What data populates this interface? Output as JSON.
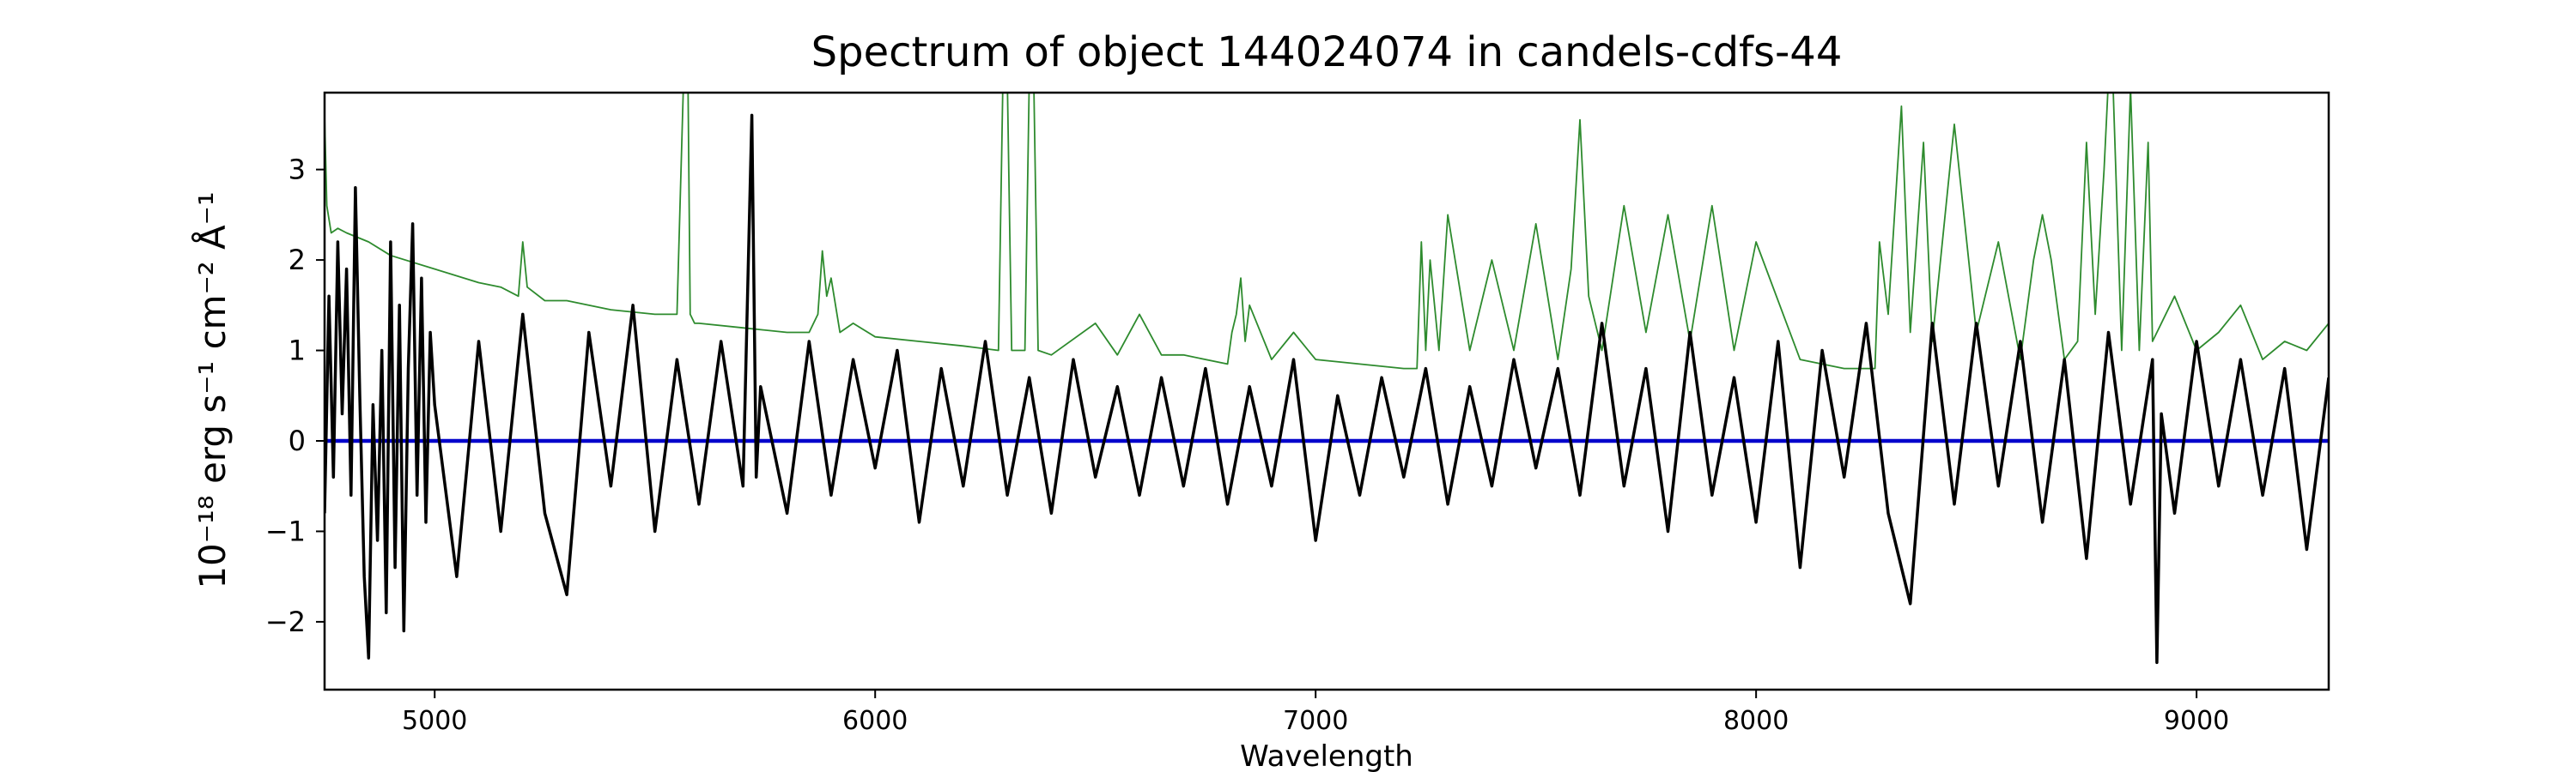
{
  "chart_data": {
    "type": "line",
    "title": "Spectrum of object 144024074 in candels-cdfs-44",
    "xlabel": "Wavelength",
    "ylabel": "10⁻¹⁸ erg s⁻¹ cm⁻² Å⁻¹",
    "xlim": [
      4750,
      9300
    ],
    "ylim": [
      -2.75,
      3.85
    ],
    "x_ticks": [
      5000,
      6000,
      7000,
      8000,
      9000
    ],
    "y_ticks": [
      -2,
      -1,
      0,
      1,
      2,
      3
    ],
    "grid": false,
    "legend": "none",
    "series": [
      {
        "role": "flux",
        "color": "#000000",
        "x": [
          4750,
          4760,
          4770,
          4780,
          4790,
          4800,
          4810,
          4820,
          4830,
          4840,
          4850,
          4860,
          4870,
          4880,
          4890,
          4900,
          4910,
          4920,
          4930,
          4940,
          4950,
          4960,
          4970,
          4980,
          4990,
          5000,
          5050,
          5100,
          5150,
          5200,
          5250,
          5300,
          5350,
          5400,
          5450,
          5500,
          5550,
          5600,
          5650,
          5700,
          5720,
          5730,
          5740,
          5800,
          5850,
          5900,
          5950,
          6000,
          6050,
          6100,
          6150,
          6200,
          6250,
          6300,
          6350,
          6400,
          6450,
          6500,
          6550,
          6600,
          6650,
          6700,
          6750,
          6800,
          6850,
          6900,
          6950,
          7000,
          7050,
          7100,
          7150,
          7200,
          7250,
          7300,
          7350,
          7400,
          7450,
          7500,
          7550,
          7600,
          7650,
          7700,
          7750,
          7800,
          7850,
          7900,
          7950,
          8000,
          8050,
          8100,
          8150,
          8200,
          8250,
          8300,
          8350,
          8400,
          8450,
          8500,
          8550,
          8600,
          8650,
          8700,
          8750,
          8800,
          8850,
          8900,
          8910,
          8920,
          8950,
          9000,
          9050,
          9100,
          9150,
          9200,
          9250,
          9300
        ],
        "y": [
          -0.8,
          1.6,
          -0.4,
          2.2,
          0.3,
          1.9,
          -0.6,
          2.8,
          0.5,
          -1.5,
          -2.4,
          0.4,
          -1.1,
          1.0,
          -1.9,
          2.2,
          -1.4,
          1.5,
          -2.1,
          0.8,
          2.4,
          -0.6,
          1.8,
          -0.9,
          1.2,
          0.4,
          -1.5,
          1.1,
          -1.0,
          1.4,
          -0.8,
          -1.7,
          1.2,
          -0.5,
          1.5,
          -1.0,
          0.9,
          -0.7,
          1.1,
          -0.5,
          3.6,
          -0.4,
          0.6,
          -0.8,
          1.1,
          -0.6,
          0.9,
          -0.3,
          1.0,
          -0.9,
          0.8,
          -0.5,
          1.1,
          -0.6,
          0.7,
          -0.8,
          0.9,
          -0.4,
          0.6,
          -0.6,
          0.7,
          -0.5,
          0.8,
          -0.7,
          0.6,
          -0.5,
          0.9,
          -1.1,
          0.5,
          -0.6,
          0.7,
          -0.4,
          0.8,
          -0.7,
          0.6,
          -0.5,
          0.9,
          -0.3,
          0.8,
          -0.6,
          1.3,
          -0.5,
          0.8,
          -1.0,
          1.2,
          -0.6,
          0.7,
          -0.9,
          1.1,
          -1.4,
          1.0,
          -0.4,
          1.3,
          -0.8,
          -1.8,
          1.3,
          -0.7,
          1.3,
          -0.5,
          1.1,
          -0.9,
          0.9,
          -1.3,
          1.2,
          -0.7,
          0.9,
          -2.45,
          0.3,
          -0.8,
          1.1,
          -0.5,
          0.9,
          -0.6,
          0.8,
          -1.2,
          0.7
        ]
      },
      {
        "role": "noise",
        "color": "#2e8b2e",
        "x": [
          4750,
          4755,
          4765,
          4780,
          4800,
          4850,
          4900,
          5000,
          5100,
          5150,
          5190,
          5200,
          5210,
          5250,
          5300,
          5400,
          5500,
          5550,
          5565,
          5575,
          5580,
          5590,
          5600,
          5700,
          5800,
          5850,
          5870,
          5880,
          5890,
          5900,
          5920,
          5950,
          6000,
          6100,
          6200,
          6280,
          6290,
          6300,
          6310,
          6340,
          6350,
          6360,
          6370,
          6400,
          6500,
          6550,
          6600,
          6650,
          6700,
          6800,
          6810,
          6820,
          6830,
          6840,
          6850,
          6900,
          6950,
          7000,
          7100,
          7200,
          7230,
          7240,
          7250,
          7260,
          7280,
          7300,
          7350,
          7400,
          7450,
          7500,
          7550,
          7580,
          7600,
          7620,
          7650,
          7700,
          7750,
          7800,
          7850,
          7900,
          7950,
          8000,
          8100,
          8200,
          8270,
          8280,
          8300,
          8330,
          8350,
          8380,
          8400,
          8450,
          8500,
          8550,
          8600,
          8630,
          8650,
          8670,
          8700,
          8730,
          8750,
          8770,
          8790,
          8800,
          8810,
          8830,
          8850,
          8870,
          8890,
          8900,
          8950,
          9000,
          9050,
          9100,
          9150,
          9200,
          9250,
          9300
        ],
        "y": [
          3.6,
          2.6,
          2.3,
          2.35,
          2.3,
          2.2,
          2.05,
          1.9,
          1.75,
          1.7,
          1.6,
          2.2,
          1.7,
          1.55,
          1.55,
          1.45,
          1.4,
          1.4,
          4.0,
          4.0,
          1.4,
          1.3,
          1.3,
          1.25,
          1.2,
          1.2,
          1.4,
          2.1,
          1.6,
          1.8,
          1.2,
          1.3,
          1.15,
          1.1,
          1.05,
          1.0,
          4.0,
          4.0,
          1.0,
          1.0,
          4.0,
          4.0,
          1.0,
          0.95,
          1.3,
          0.95,
          1.4,
          0.95,
          0.95,
          0.85,
          1.2,
          1.4,
          1.8,
          1.1,
          1.5,
          0.9,
          1.2,
          0.9,
          0.85,
          0.8,
          0.8,
          2.2,
          1.0,
          2.0,
          1.0,
          2.5,
          1.0,
          2.0,
          1.0,
          2.4,
          0.9,
          1.9,
          3.55,
          1.6,
          1.0,
          2.6,
          1.2,
          2.5,
          1.1,
          2.6,
          1.0,
          2.2,
          0.9,
          0.8,
          0.8,
          2.2,
          1.4,
          3.7,
          1.2,
          3.3,
          1.1,
          3.5,
          1.2,
          2.2,
          0.9,
          2.0,
          2.5,
          2.0,
          0.9,
          1.1,
          3.3,
          1.4,
          3.0,
          4.0,
          4.0,
          1.0,
          3.9,
          1.0,
          3.3,
          1.1,
          1.6,
          1.0,
          1.2,
          1.5,
          0.9,
          1.1,
          1.0,
          1.3
        ]
      },
      {
        "role": "zero-line",
        "color": "#0000cc",
        "x": [
          4750,
          9300
        ],
        "y": [
          0,
          0
        ]
      }
    ]
  }
}
